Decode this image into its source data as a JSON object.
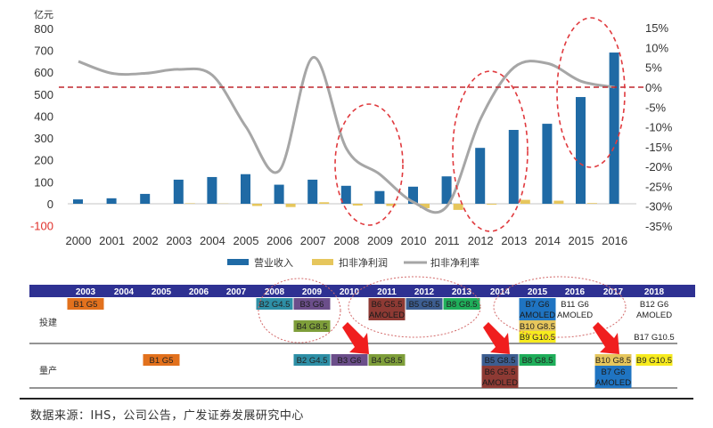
{
  "chart_data": {
    "type": "bar+line",
    "title": "",
    "ylabel_left": "亿元",
    "ylim_left": [
      -100,
      800
    ],
    "yticks_left": [
      "800",
      "700",
      "600",
      "500",
      "400",
      "300",
      "200",
      "100",
      "0",
      "-100"
    ],
    "ylim_right": [
      -35,
      15
    ],
    "yticks_right": [
      "15%",
      "10%",
      "5%",
      "0%",
      "-5%",
      "-10%",
      "-15%",
      "-20%",
      "-25%",
      "-30%",
      "-35%"
    ],
    "categories": [
      "2000",
      "2001",
      "2002",
      "2003",
      "2004",
      "2005",
      "2006",
      "2007",
      "2008",
      "2009",
      "2010",
      "2011",
      "2012",
      "2013",
      "2014",
      "2015",
      "2016"
    ],
    "series": [
      {
        "name": "营业收入",
        "axis": "left",
        "type": "bar",
        "color": "#1F6AA5",
        "values": [
          20,
          25,
          45,
          110,
          122,
          135,
          87,
          110,
          82,
          58,
          78,
          125,
          255,
          337,
          365,
          487,
          690
        ]
      },
      {
        "name": "扣非净利润",
        "axis": "left",
        "type": "bar",
        "color": "#E6C65C",
        "values": [
          0,
          0,
          0,
          2,
          1,
          -10,
          -15,
          7,
          -8,
          -10,
          -20,
          -28,
          -4,
          18,
          14,
          3,
          0
        ]
      },
      {
        "name": "扣非净利率",
        "axis": "right",
        "type": "line",
        "color": "#A6A6A6",
        "values": [
          6.5,
          3.5,
          3.5,
          4.5,
          3,
          -10,
          -21,
          7.5,
          -15.5,
          -22,
          -29,
          -30,
          -8,
          5,
          6,
          1.5,
          0
        ]
      }
    ],
    "annotations": {
      "zero_reference_line": "0%",
      "highlight_ellipses": [
        "2008-2009",
        "2011-2013",
        "2015-2016"
      ]
    },
    "legend_position": "bottom"
  },
  "timeline": {
    "years": [
      "2003",
      "2004",
      "2005",
      "2006",
      "2007",
      "2008",
      "2009",
      "2010",
      "2011",
      "2012",
      "2013",
      "2014",
      "2015",
      "2016",
      "2017",
      "2018"
    ],
    "row_labels": {
      "build": "投建",
      "mass": "量产"
    },
    "build": [
      {
        "year": "2003",
        "text": "B1 G5",
        "color": "#E2711D",
        "row": 0
      },
      {
        "year": "2008",
        "text": "B2 G4.5",
        "color": "#2E8FA6",
        "row": 0
      },
      {
        "year": "2009",
        "text": "B3 G6",
        "color": "#6B4E8A",
        "row": 0
      },
      {
        "year": "2009",
        "text": "B4 G8.5",
        "color": "#7E9E3A",
        "row": 1
      },
      {
        "year": "2011",
        "text": "B6 G5.5 AMOLED",
        "color": "#8E3A34",
        "row": 0
      },
      {
        "year": "2012",
        "text": "B5 G8.5",
        "color": "#3D5E91",
        "row": 0
      },
      {
        "year": "2013",
        "text": "B8 G8.5",
        "color": "#1FAE5A",
        "row": 0
      },
      {
        "year": "2015",
        "text": "B7 G6 AMOLED",
        "color": "#1F74C2",
        "row": 0
      },
      {
        "year": "2015",
        "text": "B10 G8.5",
        "color": "#E6C65C",
        "row": 1
      },
      {
        "year": "2015",
        "text": "B9 G10.5",
        "color": "#F7EB1E",
        "row": 2
      },
      {
        "year": "2016",
        "text": "B11 G6 AMOLED",
        "color": "",
        "row": 0
      },
      {
        "year": "2018",
        "text": "B12 G6 AMOLED",
        "color": "",
        "row": 0
      },
      {
        "year": "2018",
        "text": "B17 G10.5",
        "color": "",
        "row": 2
      }
    ],
    "mass": [
      {
        "year": "2005",
        "text": "B1 G5",
        "color": "#E2711D",
        "row": 0
      },
      {
        "year": "2009",
        "text": "B2 G4.5",
        "color": "#2E8FA6",
        "row": 0
      },
      {
        "year": "2010",
        "text": "B3 G6",
        "color": "#6B4E8A",
        "row": 0
      },
      {
        "year": "2011",
        "text": "B4 G8.5",
        "color": "#7E9E3A",
        "row": 0
      },
      {
        "year": "2014",
        "text": "B5 G8.5",
        "color": "#3D5E91",
        "row": 0
      },
      {
        "year": "2014",
        "text": "B6 G5.5 AMOLED",
        "color": "#8E3A34",
        "row": 1
      },
      {
        "year": "2015",
        "text": "B8 G8.5",
        "color": "#1FAE5A",
        "row": 0
      },
      {
        "year": "2017",
        "text": "B10 G8.5",
        "color": "#E6C65C",
        "row": 0
      },
      {
        "year": "2017",
        "text": "B7 G6 AMOLED",
        "color": "#1F74C2",
        "row": 1
      },
      {
        "year": "2018",
        "text": "B9 G10.5",
        "color": "#F7EB1E",
        "row": 0
      }
    ]
  },
  "source": "数据来源：IHS，公司公告，广发证券发展研究中心"
}
